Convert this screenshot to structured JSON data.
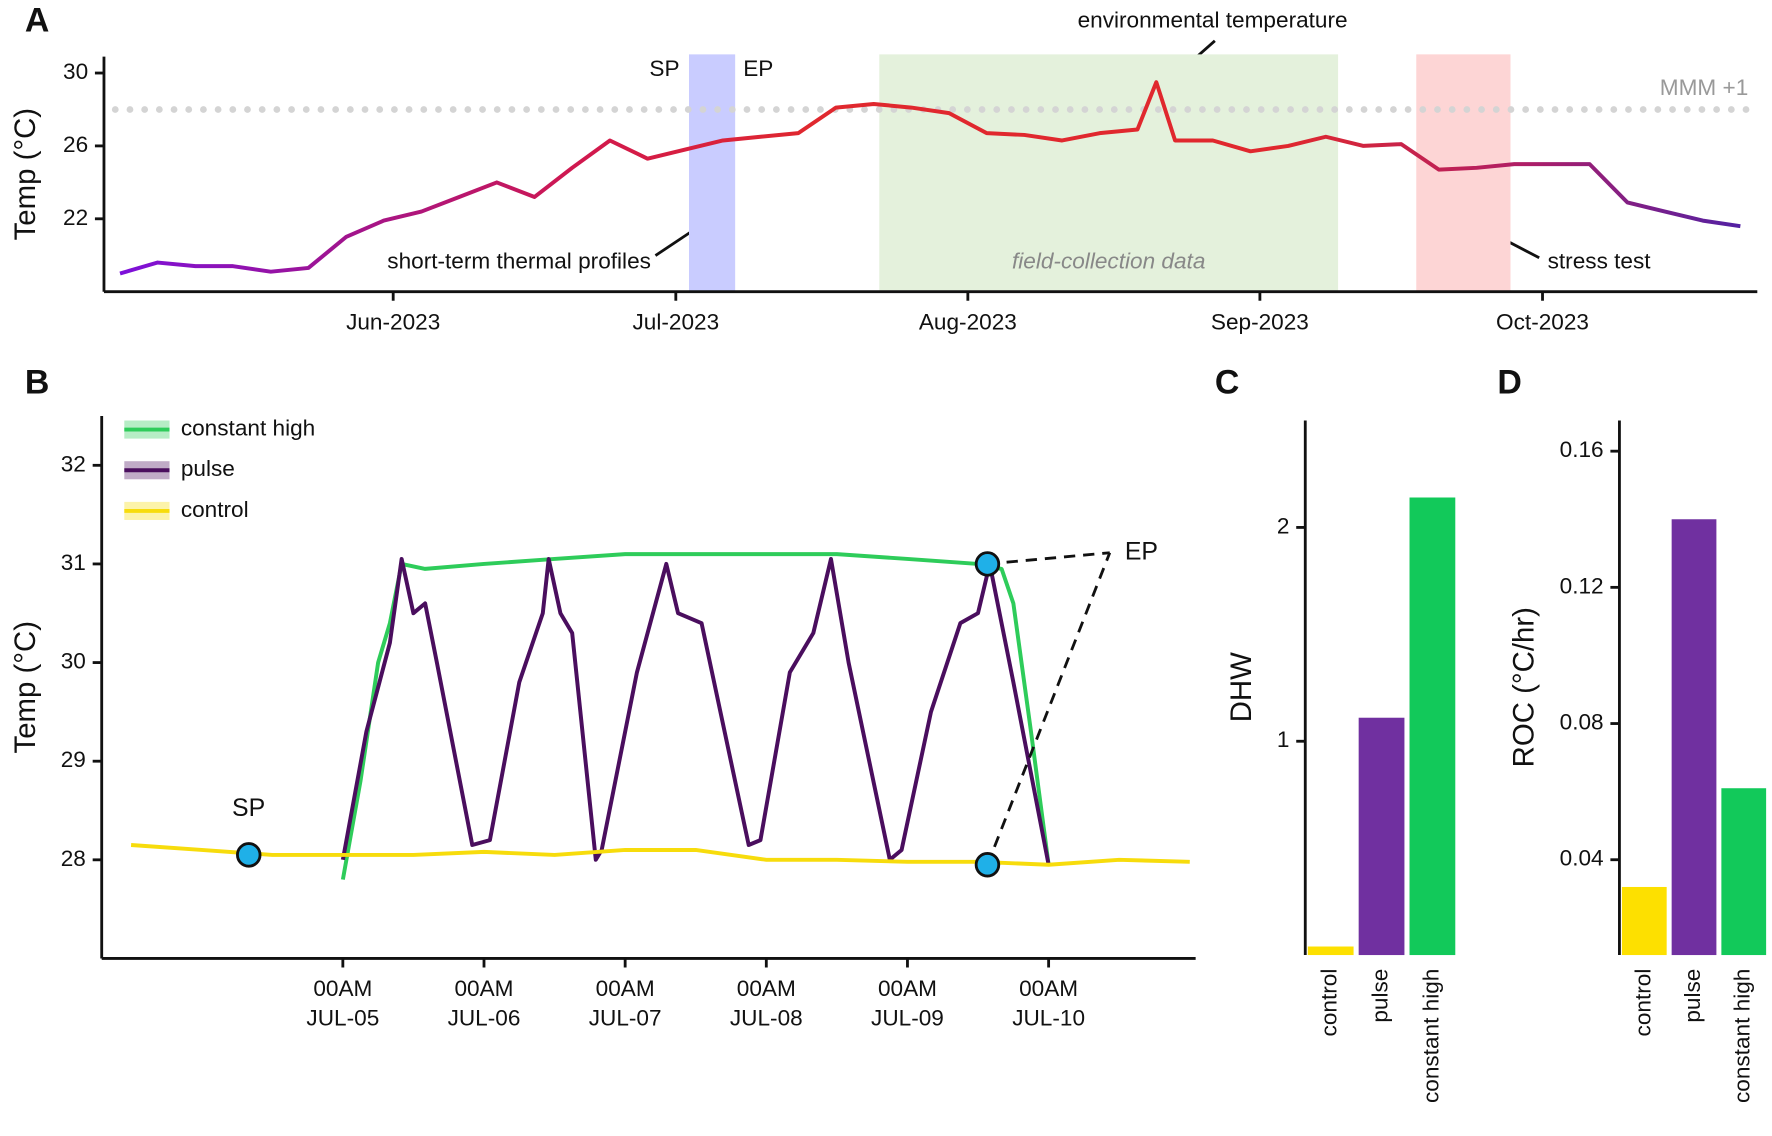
{
  "chart_data": [
    {
      "type": "line",
      "panel": "A",
      "ylabel": "Temp (°C)",
      "x": [
        0,
        4,
        8,
        12,
        16,
        20,
        24,
        28,
        32,
        36,
        40,
        44,
        48,
        52,
        56,
        60,
        64,
        68,
        72,
        76,
        80,
        84,
        88,
        92,
        96,
        100,
        104,
        108,
        110,
        112,
        116,
        120,
        124,
        128,
        132,
        136,
        140,
        144,
        148,
        152,
        156,
        160,
        164,
        168,
        172
      ],
      "values": [
        19.0,
        19.6,
        19.4,
        19.4,
        19.1,
        19.3,
        21.0,
        21.9,
        22.4,
        23.2,
        24.0,
        23.2,
        24.8,
        26.3,
        25.3,
        25.8,
        26.3,
        26.5,
        26.7,
        28.1,
        28.3,
        28.1,
        27.8,
        26.7,
        26.6,
        26.3,
        26.7,
        26.9,
        29.5,
        26.3,
        26.3,
        25.7,
        26.0,
        26.5,
        26.0,
        26.1,
        24.7,
        24.8,
        25.0,
        25.0,
        25.0,
        22.9,
        22.4,
        21.9,
        21.6
      ],
      "gradient": [
        "#7a10e0",
        "#a0148f",
        "#d0184f",
        "#e0282e",
        "#e0282e",
        "#e0282e",
        "#b01e66",
        "#4b20a8"
      ],
      "xlim": [
        -1.7,
        173.8
      ],
      "xticks": [
        {
          "value": 29,
          "label": "Jun-2023"
        },
        {
          "value": 59,
          "label": "Jul-2023"
        },
        {
          "value": 90,
          "label": "Aug-2023"
        },
        {
          "value": 121,
          "label": "Sep-2023"
        },
        {
          "value": 151,
          "label": "Oct-2023"
        }
      ],
      "ylim": [
        18,
        30.9
      ],
      "yticks": [
        22,
        26,
        30
      ],
      "hline": {
        "value": 28,
        "label": "MMM +1",
        "color": "#d4d4d4"
      },
      "regions": [
        {
          "x": [
            60.4,
            65.3
          ],
          "color": "#c9ccff"
        },
        {
          "x": [
            80.6,
            129.3
          ],
          "color": "#e4f1dc",
          "label": "field-collection data"
        },
        {
          "x": [
            137.6,
            147.6
          ],
          "color": "#fdd5d5"
        }
      ],
      "annotations": [
        "SP",
        "EP",
        "environmental temperature",
        "short-term thermal profiles",
        "stress test"
      ]
    },
    {
      "type": "line",
      "panel": "B",
      "ylabel": "Temp (°C)",
      "legend": "upper left",
      "series": [
        {
          "name": "constant high",
          "color": "#2ecc5a",
          "x": [
            0,
            3,
            6,
            8,
            10,
            14,
            24,
            36,
            48,
            60,
            72,
            84,
            96,
            108,
            112,
            114,
            117,
            120
          ],
          "values": [
            27.8,
            28.8,
            30.0,
            30.4,
            31.0,
            30.95,
            31.0,
            31.05,
            31.1,
            31.1,
            31.1,
            31.1,
            31.05,
            31.0,
            30.95,
            30.6,
            29.3,
            27.95
          ]
        },
        {
          "name": "pulse",
          "color": "#4a0e5e",
          "x": [
            0,
            4,
            8,
            10,
            12,
            14,
            16,
            22,
            25,
            30,
            34,
            35,
            37,
            39,
            43,
            44,
            50,
            55,
            57,
            61,
            69,
            71,
            76,
            80,
            83,
            86,
            93,
            95,
            100,
            105,
            108,
            110,
            114,
            120
          ],
          "values": [
            28.0,
            29.3,
            30.2,
            31.05,
            30.5,
            30.6,
            30.0,
            28.15,
            28.2,
            29.8,
            30.5,
            31.05,
            30.5,
            30.3,
            28.0,
            28.1,
            29.9,
            31.0,
            30.5,
            30.4,
            28.15,
            28.2,
            29.9,
            30.3,
            31.05,
            30.0,
            28.0,
            28.1,
            29.5,
            30.4,
            30.5,
            31.0,
            29.8,
            27.95
          ]
        },
        {
          "name": "control",
          "color": "#f7dc0c",
          "x": [
            -36,
            -24,
            -12,
            0,
            12,
            24,
            36,
            48,
            60,
            72,
            84,
            96,
            108,
            120,
            132,
            144
          ],
          "values": [
            28.15,
            28.1,
            28.05,
            28.05,
            28.05,
            28.08,
            28.05,
            28.1,
            28.1,
            28.0,
            28.0,
            27.98,
            27.98,
            27.95,
            28.0,
            27.98
          ]
        }
      ],
      "xlim": [
        -41,
        145
      ],
      "xticks": [
        {
          "value": 0,
          "label": "00AM\nJUL-05"
        },
        {
          "value": 24,
          "label": "00AM\nJUL-06"
        },
        {
          "value": 48,
          "label": "00AM\nJUL-07"
        },
        {
          "value": 72,
          "label": "00AM\nJUL-08"
        },
        {
          "value": 96,
          "label": "00AM\nJUL-09"
        },
        {
          "value": 120,
          "label": "00AM\nJUL-10"
        }
      ],
      "ylim": [
        27,
        32.5
      ],
      "yticks": [
        28,
        29,
        30,
        31,
        32
      ],
      "markers": [
        {
          "text": "SP",
          "points": [
            {
              "x": -16,
              "y": 28.05
            }
          ]
        },
        {
          "text": "EP",
          "points": [
            {
              "x": 109.6,
              "y": 31.0
            },
            {
              "x": 109.6,
              "y": 27.95
            }
          ]
        }
      ],
      "marker_color": "#1fb0e8"
    },
    {
      "type": "bar",
      "panel": "C",
      "ylabel": "DHW",
      "categories": [
        "control",
        "pulse",
        "constant high"
      ],
      "values": [
        0.04,
        1.11,
        2.14
      ],
      "colors": [
        "#fde000",
        "#7030a0",
        "#12c95a"
      ],
      "ylim": [
        0,
        2.5
      ],
      "yticks": [
        1,
        2
      ]
    },
    {
      "type": "bar",
      "panel": "D",
      "ylabel": "ROC (°C/hr)",
      "categories": [
        "control",
        "pulse",
        "constant high"
      ],
      "values": [
        0.032,
        0.14,
        0.061
      ],
      "colors": [
        "#fde000",
        "#7030a0",
        "#12c95a"
      ],
      "ylim": [
        0.012,
        0.169
      ],
      "yticks": [
        0.04,
        0.08,
        0.12,
        0.16
      ]
    }
  ]
}
